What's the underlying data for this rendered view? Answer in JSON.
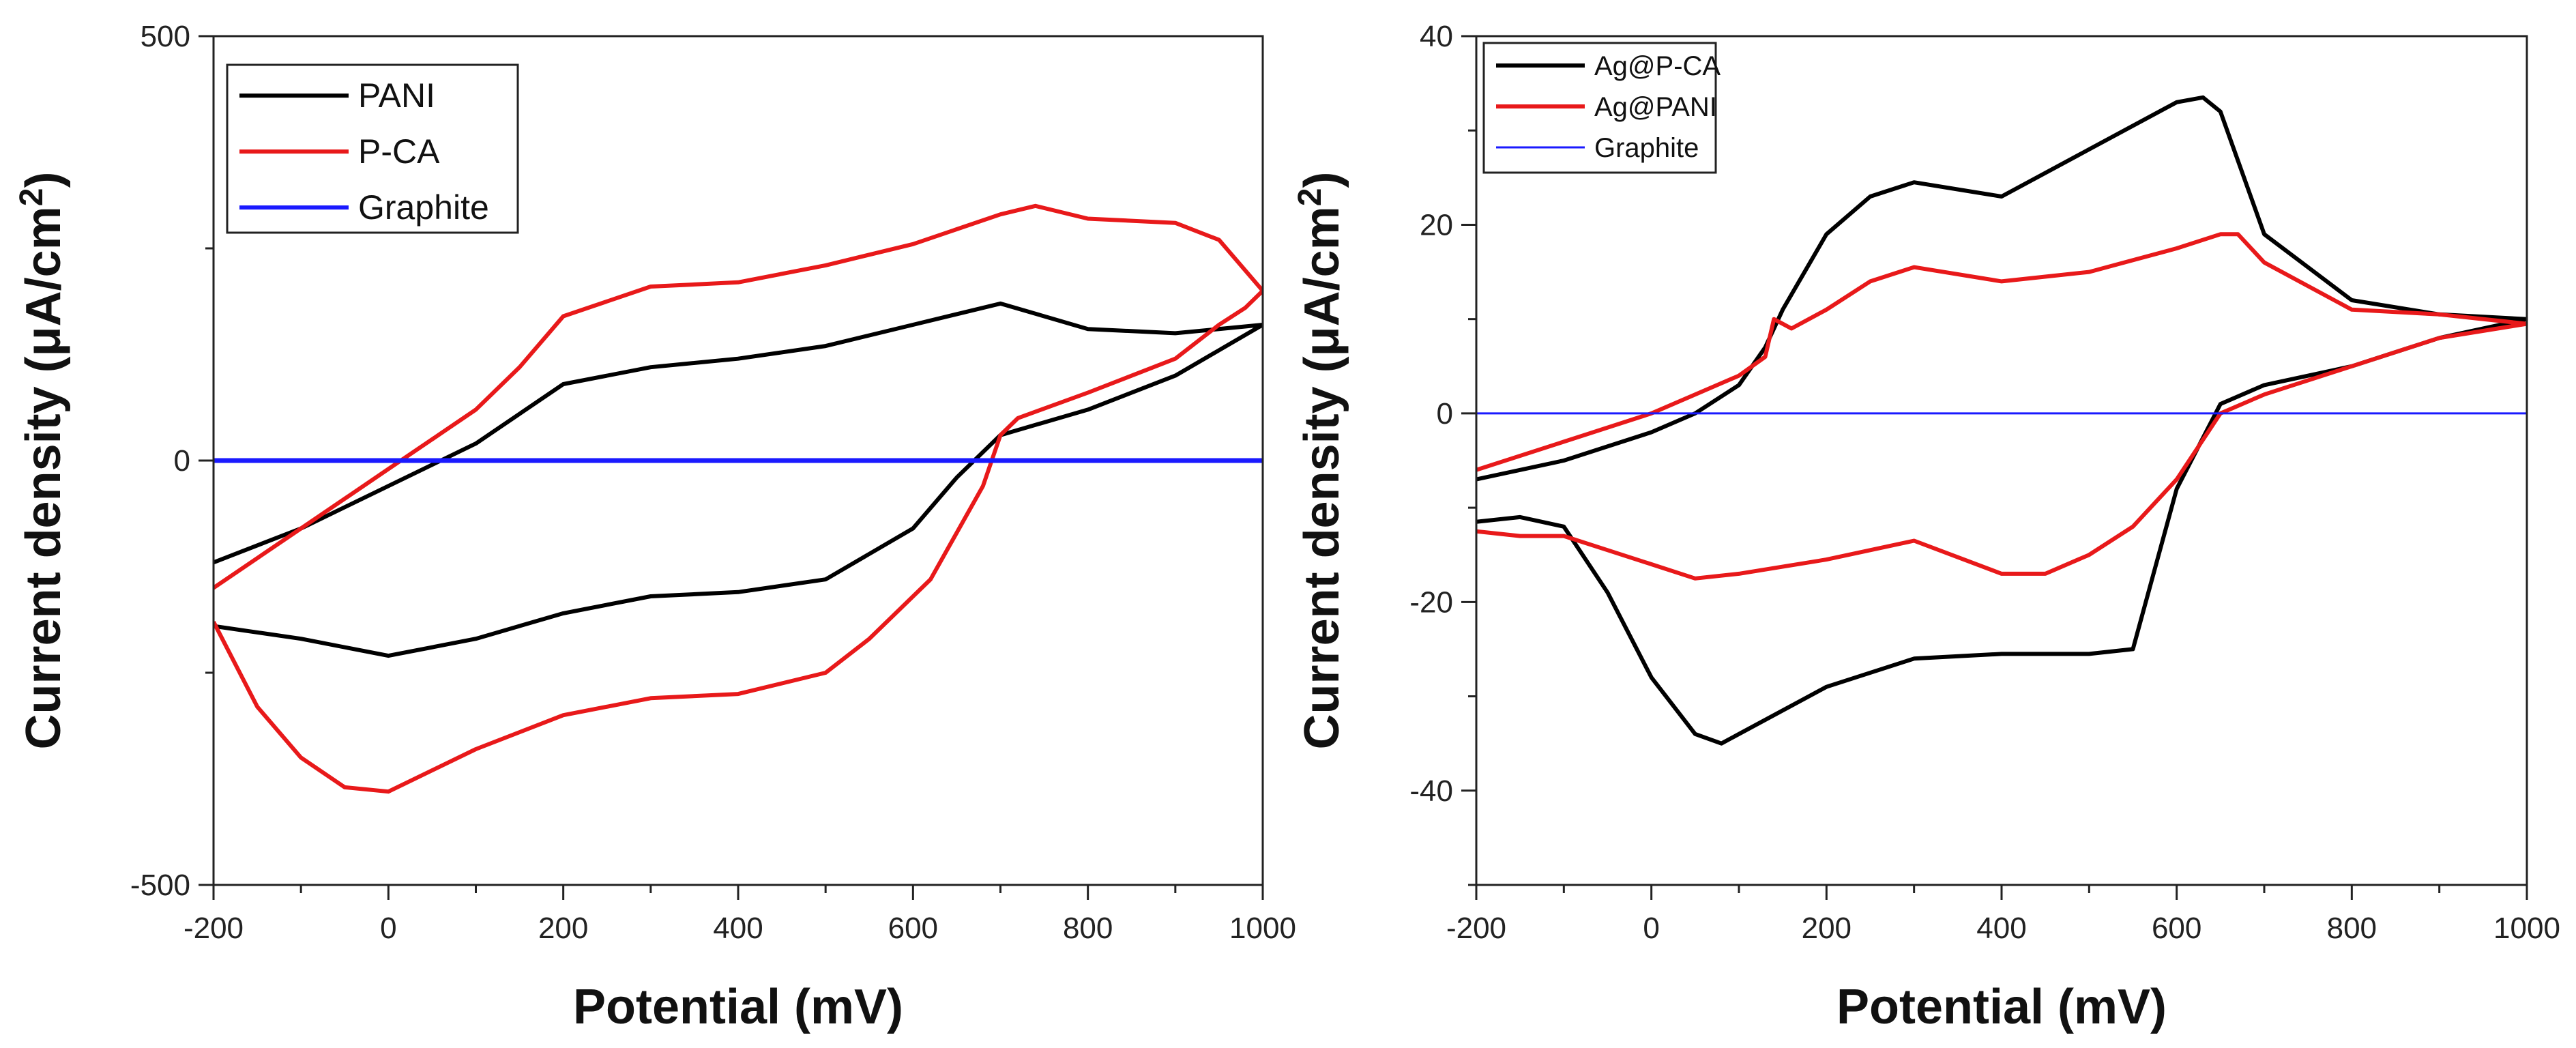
{
  "chart_data": [
    {
      "type": "line",
      "title": "",
      "xlabel": "Potential (mV)",
      "ylabel": "Current density (μA/cm²)",
      "ylabel_main": "Current density (μA/cm",
      "ylabel_sup": "2",
      "ylabel_close": ")",
      "xlim": [
        -200,
        1000
      ],
      "ylim": [
        -500,
        500
      ],
      "xticks": [
        "-200",
        "0",
        "200",
        "400",
        "600",
        "800",
        "1000"
      ],
      "yticks": [
        "-500",
        "0",
        "500"
      ],
      "legend_position": "top-left",
      "series": [
        {
          "name": "PANI",
          "color": "#000000",
          "x": [
            -200,
            -100,
            0,
            100,
            200,
            300,
            400,
            500,
            600,
            700,
            800,
            900,
            1000,
            950,
            900,
            800,
            700,
            650,
            600,
            500,
            400,
            300,
            200,
            100,
            0,
            -100,
            -200
          ],
          "y": [
            -120,
            -80,
            -30,
            20,
            90,
            110,
            120,
            135,
            160,
            185,
            155,
            150,
            160,
            130,
            100,
            60,
            30,
            -20,
            -80,
            -140,
            -155,
            -160,
            -180,
            -210,
            -230,
            -210,
            -195
          ]
        },
        {
          "name": "P-CA",
          "color": "#e8191a",
          "x": [
            -200,
            -100,
            0,
            100,
            150,
            200,
            300,
            400,
            500,
            600,
            700,
            740,
            800,
            900,
            950,
            1000,
            980,
            950,
            900,
            800,
            720,
            700,
            680,
            620,
            550,
            500,
            400,
            300,
            200,
            100,
            0,
            -50,
            -100,
            -150,
            -200
          ],
          "y": [
            -150,
            -80,
            -10,
            60,
            110,
            170,
            205,
            210,
            230,
            255,
            290,
            300,
            285,
            280,
            260,
            200,
            180,
            160,
            120,
            80,
            50,
            30,
            -30,
            -140,
            -210,
            -250,
            -275,
            -280,
            -300,
            -340,
            -390,
            -385,
            -350,
            -290,
            -190
          ]
        },
        {
          "name": "Graphite",
          "color": "#1a1aff",
          "x": [
            -200,
            1000
          ],
          "y": [
            0,
            0
          ]
        }
      ]
    },
    {
      "type": "line",
      "title": "",
      "xlabel": "Potential (mV)",
      "ylabel": "Current density (μA/cm²)",
      "ylabel_main": "Current density (μA/cm",
      "ylabel_sup": "2",
      "ylabel_close": ")",
      "xlim": [
        -200,
        1000
      ],
      "ylim": [
        -50,
        40
      ],
      "xticks": [
        "-200",
        "0",
        "200",
        "400",
        "600",
        "800",
        "1000"
      ],
      "yticks": [
        "40",
        "20",
        "0",
        "-20",
        "-40"
      ],
      "legend_position": "top-left",
      "series": [
        {
          "name": "Ag@P-CA",
          "color": "#000000",
          "x": [
            -200,
            -100,
            0,
            50,
            100,
            130,
            150,
            200,
            250,
            300,
            400,
            500,
            600,
            630,
            650,
            700,
            800,
            900,
            1000,
            900,
            800,
            700,
            650,
            600,
            550,
            500,
            400,
            300,
            200,
            100,
            80,
            50,
            0,
            -50,
            -100,
            -150,
            -200
          ],
          "y": [
            -7,
            -5,
            -2,
            0,
            3,
            7,
            11,
            19,
            23,
            24.5,
            23,
            28,
            33,
            33.5,
            32,
            19,
            12,
            10.5,
            10,
            8,
            5,
            3,
            1,
            -8,
            -25,
            -25.5,
            -25.5,
            -26,
            -29,
            -34,
            -35,
            -34,
            -28,
            -19,
            -12,
            -11,
            -11.5
          ],
          "_note": "points traced in order around the loop"
        },
        {
          "name": "Ag@PANI",
          "color": "#e8191a",
          "x": [
            -200,
            -100,
            0,
            50,
            100,
            130,
            140,
            160,
            200,
            250,
            300,
            400,
            500,
            600,
            650,
            670,
            700,
            800,
            900,
            1000,
            900,
            800,
            700,
            650,
            600,
            550,
            500,
            450,
            400,
            300,
            200,
            100,
            50,
            0,
            -50,
            -100,
            -150,
            -200
          ],
          "y": [
            -6,
            -3,
            0,
            2,
            4,
            6,
            10,
            9,
            11,
            14,
            15.5,
            14,
            15,
            17.5,
            19,
            19,
            16,
            11,
            10.5,
            9.5,
            8,
            5,
            2,
            0,
            -7,
            -12,
            -15,
            -17,
            -17,
            -13.5,
            -15.5,
            -17,
            -17.5,
            -16,
            -14.5,
            -13,
            -13,
            -12.5
          ]
        },
        {
          "name": "Graphite",
          "color": "#1a1aff",
          "x": [
            -200,
            1000
          ],
          "y": [
            0,
            0
          ]
        }
      ]
    }
  ]
}
